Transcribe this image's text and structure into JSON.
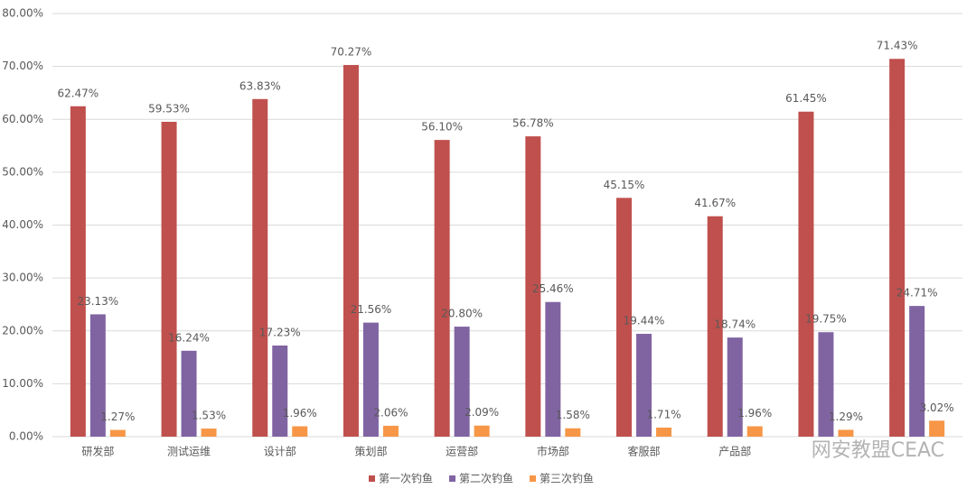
{
  "chart_data": {
    "type": "bar",
    "categories": [
      "研发部",
      "测试运维",
      "设计部",
      "策划部",
      "运营部",
      "市场部",
      "客服部",
      "产品部",
      null,
      null
    ],
    "series": [
      {
        "name": "第一次钓鱼",
        "color": "#c0504d",
        "values": [
          62.47,
          59.53,
          63.83,
          70.27,
          56.1,
          56.78,
          45.15,
          41.67,
          61.45,
          71.43
        ],
        "value_labels": [
          "62.47%",
          "59.53%",
          "63.83%",
          "70.27%",
          "56.10%",
          "56.78%",
          "45.15%",
          "41.67%",
          "61.45%",
          "71.43%"
        ]
      },
      {
        "name": "第二次钓鱼",
        "color": "#8064a2",
        "values": [
          23.13,
          16.24,
          17.23,
          21.56,
          20.8,
          25.46,
          19.44,
          18.74,
          19.75,
          24.71
        ],
        "value_labels": [
          "23.13%",
          "16.24%",
          "17.23%",
          "21.56%",
          "20.80%",
          "25.46%",
          "19.44%",
          "18.74%",
          "19.75%",
          "24.71%"
        ]
      },
      {
        "name": "第三次钓鱼",
        "color": "#f79646",
        "values": [
          1.27,
          1.53,
          1.96,
          2.06,
          2.09,
          1.58,
          1.71,
          1.96,
          1.29,
          3.02
        ],
        "value_labels": [
          "1.27%",
          "1.53%",
          "1.96%",
          "2.06%",
          "2.09%",
          "1.58%",
          "1.71%",
          "1.96%",
          "1.29%",
          "3.02%"
        ]
      }
    ],
    "ylim": [
      0,
      80
    ],
    "yticks": [
      {
        "value": 0,
        "label": "0.00%"
      },
      {
        "value": 10,
        "label": "10.00%"
      },
      {
        "value": 20,
        "label": "20.00%"
      },
      {
        "value": 30,
        "label": "30.00%"
      },
      {
        "value": 40,
        "label": "40.00%"
      },
      {
        "value": 50,
        "label": "50.00%"
      },
      {
        "value": 60,
        "label": "60.00%"
      },
      {
        "value": 70,
        "label": "70.00%"
      },
      {
        "value": 80,
        "label": "80.00%"
      }
    ],
    "grid": true,
    "legend": "bottom",
    "watermark": "网安教盟CEAC"
  }
}
